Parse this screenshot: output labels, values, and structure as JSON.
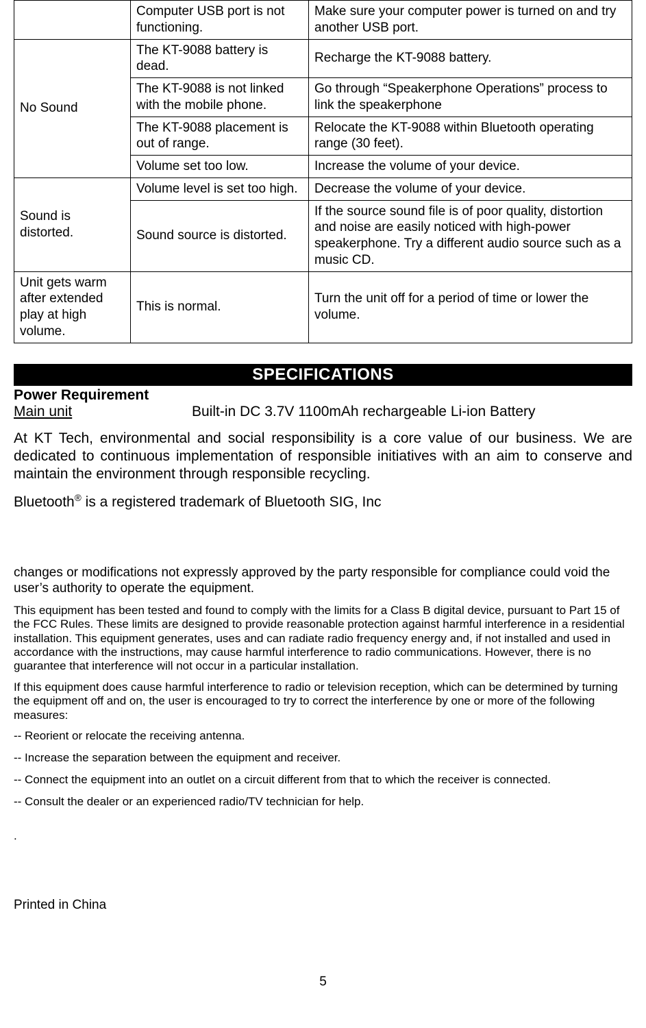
{
  "table": {
    "rows": [
      {
        "problem": "",
        "cause": "Computer USB port is not functioning.",
        "solution": "Make sure your computer power is turned on and try another USB port."
      },
      {
        "problem": "No Sound",
        "cause": "The KT-9088 battery is dead.",
        "solution": "Recharge the KT-9088 battery."
      },
      {
        "problem": "",
        "cause": "The KT-9088 is not linked with the mobile phone.",
        "solution": "Go through “Speakerphone Operations” process to link the speakerphone"
      },
      {
        "problem": "",
        "cause": "The KT-9088 placement is out of range.",
        "solution": "Relocate the KT-9088 within Bluetooth operating range (30 feet)."
      },
      {
        "problem": "",
        "cause": "Volume set too low.",
        "solution": "Increase the volume of your device."
      },
      {
        "problem": "Sound is distorted.",
        "cause": "Volume level is set too high.",
        "solution": "Decrease the volume of your device."
      },
      {
        "problem": "",
        "cause": "Sound source is distorted.",
        "solution": "If the source sound file is of poor quality, distortion and noise are easily noticed with high-power speakerphone. Try a different audio source such as a music CD."
      },
      {
        "problem": "Unit gets warm after extended play at high volume.",
        "cause": "This is normal.",
        "solution": "Turn the unit off for a period of time or lower the volume."
      }
    ]
  },
  "spec": {
    "header": "SPECIFICATIONS",
    "power_req_label": "Power Requirement",
    "main_unit_label": "Main unit",
    "main_unit_value": "Built-in DC 3.7V 1100mAh rechargeable Li-ion Battery"
  },
  "env_text": "At KT Tech, environmental and social responsibility is a core value of our business. We are dedicated to continuous implementation of responsible initiatives with an aim to conserve and maintain the environment through responsible recycling.",
  "trademark_prefix": "Bluetooth",
  "trademark_sup": "®",
  "trademark_suffix": " is a registered trademark of Bluetooth SIG, Inc",
  "fcc": {
    "para1": "changes or modifications not expressly approved by the party responsible for compliance could void the user’s authority to operate the equipment.",
    "para2": "This equipment has been tested and found to comply with the limits for a Class B digital device, pursuant to Part 15 of the FCC Rules. These limits are designed to provide reasonable protection against harmful interference in a residential installation. This equipment generates, uses and can radiate radio frequency energy and, if not installed and used in accordance with the instructions, may cause harmful interference to radio communications. However, there is no guarantee that interference will not occur in a particular installation.",
    "para3": "If this equipment does cause harmful interference to radio or television reception, which can be determined by turning the equipment off and on, the user is encouraged to try to correct the interference by one or more of the following measures:",
    "items": [
      "-- Reorient or relocate the receiving antenna.",
      "-- Increase the separation between the equipment and receiver.",
      "-- Connect the equipment into an outlet on a circuit different from that to which the receiver is connected.",
      "-- Consult the dealer or an experienced radio/TV technician for help."
    ]
  },
  "dot": ".",
  "printed": "Printed in China",
  "page_number": "5"
}
